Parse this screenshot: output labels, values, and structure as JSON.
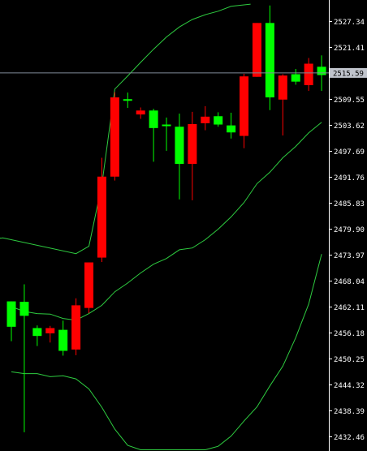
{
  "colors": {
    "background": "#000000",
    "axis": "#ffffff",
    "bull": "#00ff00",
    "bear": "#ff0000",
    "band": "#2ecc40",
    "crosshair": "#7f8a99",
    "label_bg": "#c0c4cc"
  },
  "chart_data": {
    "type": "candlestick",
    "title": "",
    "xlabel": "",
    "ylabel": "",
    "ylim": [
      2429.5,
      2531.0
    ],
    "grid": false,
    "legend": "none",
    "y_ticks": [
      "2527.34",
      "2521.41",
      "2509.55",
      "2503.62",
      "2497.69",
      "2491.76",
      "2485.83",
      "2479.90",
      "2473.97",
      "2468.04",
      "2462.11",
      "2456.18",
      "2450.25",
      "2444.32",
      "2438.39",
      "2432.46"
    ],
    "current_price": "2515.59",
    "candles": [
      {
        "open": 2457.6,
        "high": 2463.4,
        "low": 2454.3,
        "close": 2463.4
      },
      {
        "open": 2460.1,
        "high": 2467.3,
        "low": 2433.5,
        "close": 2463.3
      },
      {
        "open": 2455.5,
        "high": 2457.9,
        "low": 2453.2,
        "close": 2457.3
      },
      {
        "open": 2457.3,
        "high": 2457.8,
        "low": 2454.0,
        "close": 2456.1
      },
      {
        "open": 2452.1,
        "high": 2459.0,
        "low": 2451.0,
        "close": 2456.9
      },
      {
        "open": 2462.5,
        "high": 2464.1,
        "low": 2451.1,
        "close": 2452.4
      },
      {
        "open": 2472.3,
        "high": 2472.3,
        "low": 2460.7,
        "close": 2461.9
      },
      {
        "open": 2491.9,
        "high": 2496.2,
        "low": 2472.4,
        "close": 2473.4
      },
      {
        "open": 2510.0,
        "high": 2511.2,
        "low": 2491.0,
        "close": 2491.9
      },
      {
        "open": 2509.4,
        "high": 2511.1,
        "low": 2507.6,
        "close": 2509.6
      },
      {
        "open": 2507.0,
        "high": 2507.7,
        "low": 2505.1,
        "close": 2506.1
      },
      {
        "open": 2503.0,
        "high": 2507.4,
        "low": 2495.3,
        "close": 2507.0
      },
      {
        "open": 2503.6,
        "high": 2505.4,
        "low": 2497.8,
        "close": 2503.8
      },
      {
        "open": 2494.8,
        "high": 2506.3,
        "low": 2486.7,
        "close": 2503.3
      },
      {
        "open": 2503.9,
        "high": 2506.7,
        "low": 2486.5,
        "close": 2494.8
      },
      {
        "open": 2505.6,
        "high": 2508.0,
        "low": 2502.5,
        "close": 2504.1
      },
      {
        "open": 2503.8,
        "high": 2506.6,
        "low": 2503.3,
        "close": 2505.7
      },
      {
        "open": 2502.0,
        "high": 2506.5,
        "low": 2500.6,
        "close": 2503.6
      },
      {
        "open": 2514.8,
        "high": 2515.4,
        "low": 2498.4,
        "close": 2501.2
      },
      {
        "open": 2527.0,
        "high": 2527.0,
        "low": 2514.7,
        "close": 2514.7
      },
      {
        "open": 2510.0,
        "high": 2531.0,
        "low": 2507.1,
        "close": 2527.0
      },
      {
        "open": 2515.0,
        "high": 2515.3,
        "low": 2501.3,
        "close": 2509.5
      },
      {
        "open": 2513.6,
        "high": 2516.5,
        "low": 2512.9,
        "close": 2515.3
      },
      {
        "open": 2517.7,
        "high": 2519.0,
        "low": 2511.5,
        "close": 2512.8
      },
      {
        "open": 2515.1,
        "high": 2519.6,
        "low": 2511.5,
        "close": 2517.0
      }
    ],
    "bands": {
      "upper": [
        null,
        null,
        null,
        null,
        null,
        null,
        null,
        null,
        2511.9,
        2514.9,
        2518.0,
        2521.0,
        2523.8,
        2526.1,
        2527.8,
        2528.9,
        2529.7,
        2530.8,
        2531.0,
        2531.0,
        2531.0,
        2531.0,
        2531.0,
        2531.0,
        2531.0
      ],
      "middle": [
        2462.2,
        2461.1,
        2460.6,
        2460.5,
        2459.5,
        2459.1,
        2460.6,
        2462.5,
        2465.6,
        2467.6,
        2469.9,
        2471.9,
        2473.2,
        2475.2,
        2475.6,
        2477.5,
        2479.9,
        2482.7,
        2486.0,
        2490.3,
        2492.9,
        2496.2,
        2498.8,
        2501.9,
        2504.3
      ],
      "lower": [
        2447.3,
        2446.9,
        2446.9,
        2446.2,
        2446.4,
        2445.7,
        2443.4,
        2439.2,
        2434.2,
        2430.5,
        2429.5,
        2429.5,
        2429.5,
        2429.5,
        2429.5,
        2429.5,
        2430.3,
        2432.6,
        2436.1,
        2439.3,
        2444.1,
        2448.6,
        2455.1,
        2462.8,
        2474.2
      ]
    },
    "upper_band_lead": [
      2481.1,
      2479.7,
      2479.3,
      2477.8,
      2477.9
    ]
  }
}
